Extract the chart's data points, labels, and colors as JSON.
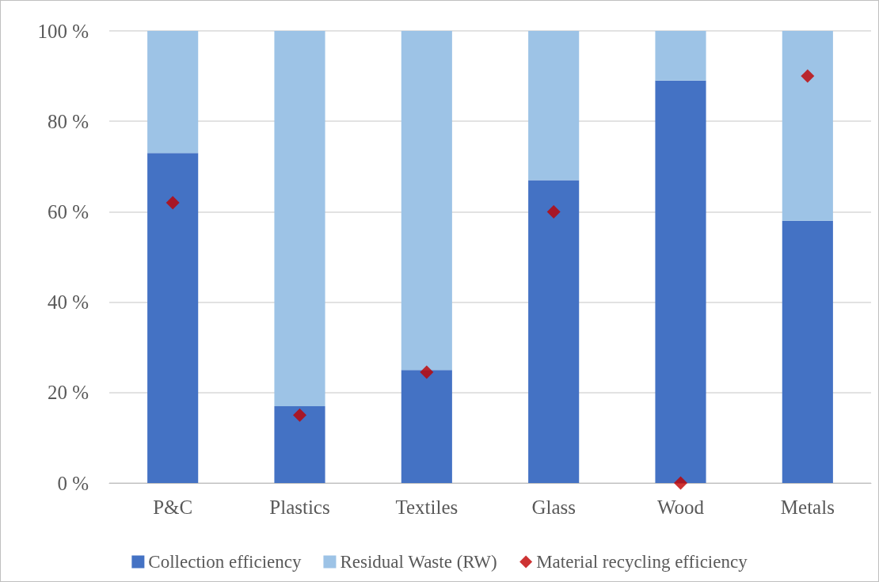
{
  "chart_data": {
    "type": "bar",
    "stacked": true,
    "categories": [
      "P&C",
      "Plastics",
      "Textiles",
      "Glass",
      "Wood",
      "Metals"
    ],
    "series": [
      {
        "name": "Collection efficiency",
        "color": "#4472c4",
        "values": [
          73,
          17,
          25,
          67,
          89,
          58
        ]
      },
      {
        "name": "Residual Waste (RW)",
        "color": "#9dc3e6",
        "values": [
          27,
          83,
          75,
          33,
          11,
          42
        ]
      },
      {
        "name": "Material recycling efficiency",
        "type": "scatter",
        "marker": "diamond",
        "color": "#c00000",
        "x": [
          "P&C",
          "Plastics",
          "Textiles",
          "Glass",
          "Wood",
          "Metals"
        ],
        "values": [
          62,
          15,
          24.5,
          60,
          0,
          90
        ]
      }
    ],
    "ylim": [
      0,
      100
    ],
    "yticks": [
      {
        "value": 0,
        "label": "0 %"
      },
      {
        "value": 20,
        "label": "20 %"
      },
      {
        "value": 40,
        "label": "40 %"
      },
      {
        "value": 60,
        "label": "60 %"
      },
      {
        "value": 80,
        "label": "80 %"
      },
      {
        "value": 100,
        "label": "100 %"
      }
    ],
    "grid": "y",
    "legend": "bottom"
  }
}
